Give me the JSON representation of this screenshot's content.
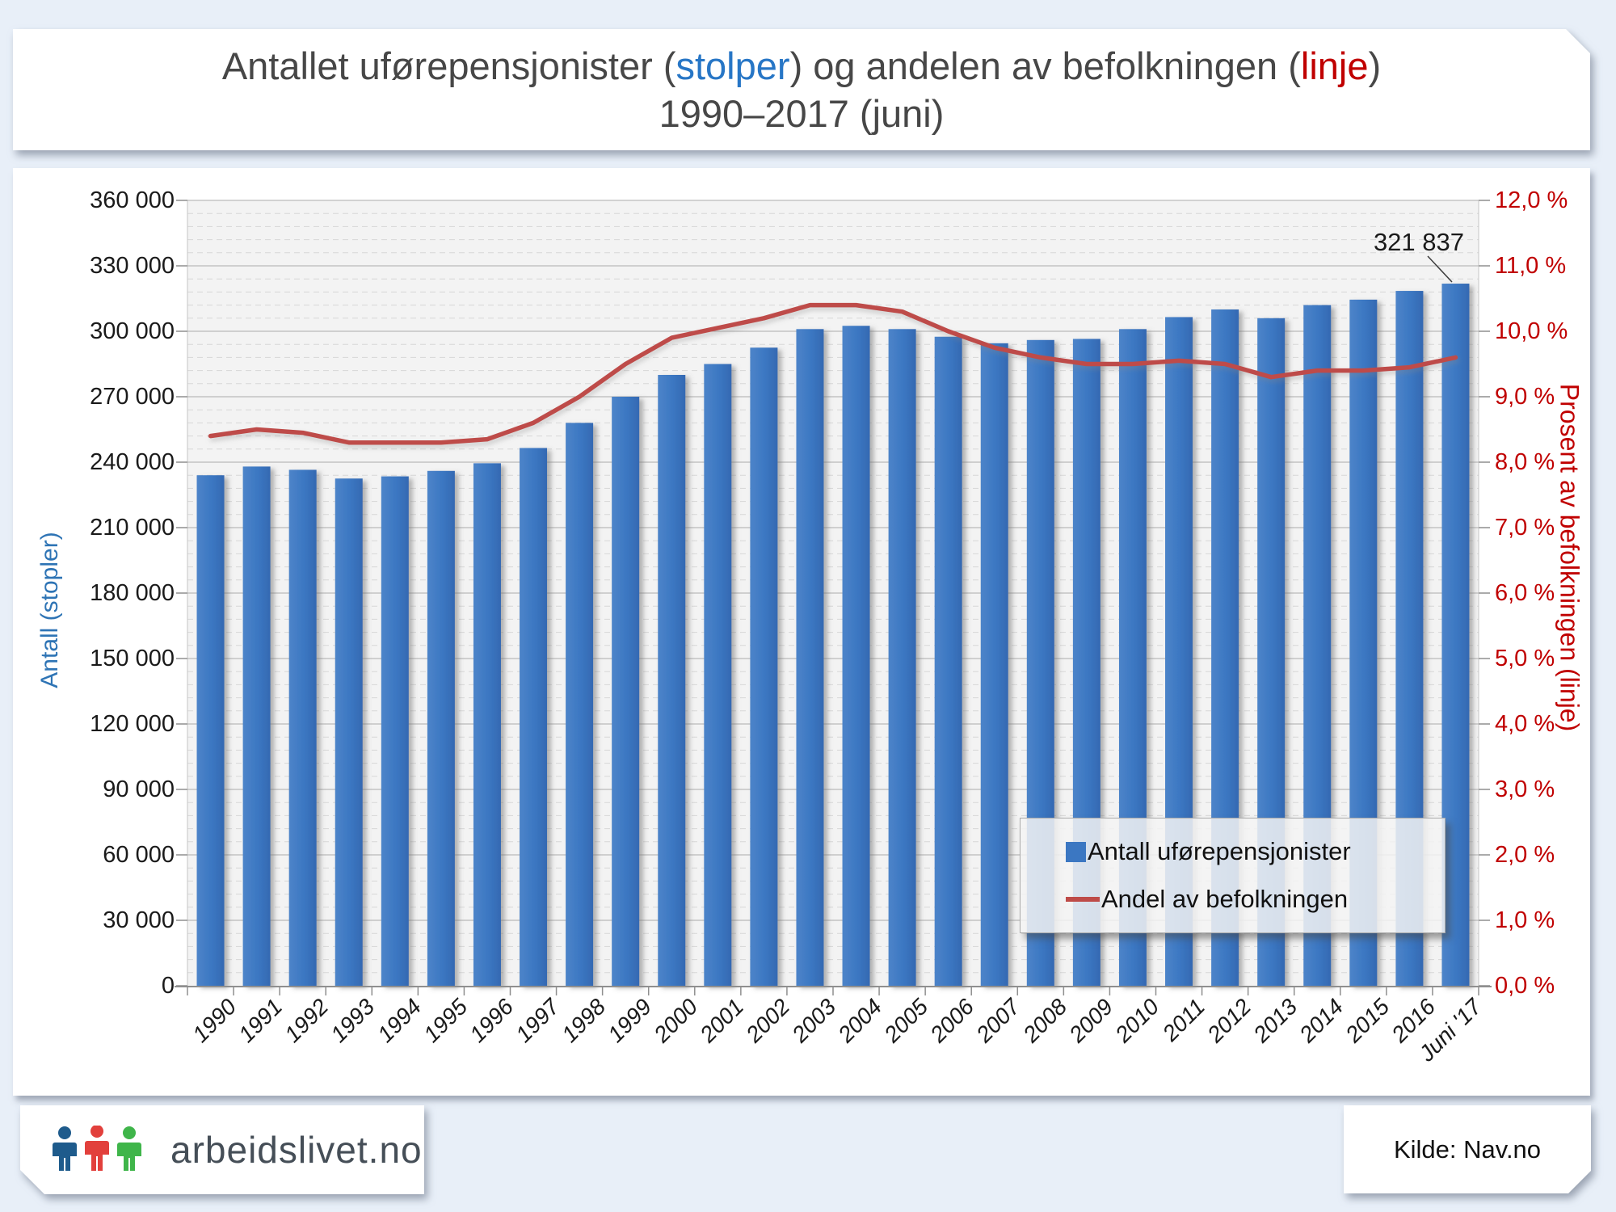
{
  "title": {
    "part1": "Antallet uførepensjonister (",
    "stolper": "stolper",
    "part2": ") og andelen av befolkningen (",
    "linje": "linje",
    "part3": ")",
    "line2": "1990–2017 (juni)",
    "accent_blue": "#2776C6",
    "accent_red": "#C00000"
  },
  "chart": {
    "left_axis_title": "Antall (stopler)",
    "right_axis_title": "Prosent av befolkningen (linje)",
    "left_ticks": [
      "360 000",
      "330 000",
      "300 000",
      "270 000",
      "240 000",
      "210 000",
      "180 000",
      "150 000",
      "120 000",
      "90 000",
      "60 000",
      "30 000",
      "0"
    ],
    "right_ticks": [
      "12,0 %",
      "11,0 %",
      "10,0 %",
      "9,0 %",
      "8,0 %",
      "7,0 %",
      "6,0 %",
      "5,0 %",
      "4,0 %",
      "3,0 %",
      "2,0 %",
      "1,0 %",
      "0,0 %"
    ],
    "annotation": "321 837",
    "legend": [
      {
        "label": "Antall uførepensjonister",
        "marker": "square",
        "color": "#3B77C2"
      },
      {
        "label": "Andel av befolkningen",
        "marker": "line",
        "color": "#BE4B48"
      }
    ]
  },
  "chart_data": {
    "type": "bar+line",
    "categories": [
      "1990",
      "1991",
      "1992",
      "1993",
      "1994",
      "1995",
      "1996",
      "1997",
      "1998",
      "1999",
      "2000",
      "2001",
      "2002",
      "2003",
      "2004",
      "2005",
      "2006",
      "2007",
      "2008",
      "2009",
      "2010",
      "2011",
      "2012",
      "2013",
      "2014",
      "2015",
      "2016",
      "Juni '17"
    ],
    "series": [
      {
        "name": "Antall uførepensjonister",
        "type": "bar",
        "axis": "left",
        "color": "#3B77C2",
        "values": [
          234000,
          238000,
          236500,
          232500,
          233500,
          236000,
          239500,
          246500,
          258000,
          270000,
          280000,
          285000,
          292500,
          301000,
          302500,
          301000,
          297500,
          294500,
          296000,
          296500,
          301000,
          306500,
          310000,
          306000,
          312000,
          314500,
          318500,
          321837
        ]
      },
      {
        "name": "Andel av befolkningen",
        "type": "line",
        "axis": "right",
        "color": "#BE4B48",
        "values": [
          8.4,
          8.5,
          8.45,
          8.3,
          8.3,
          8.3,
          8.35,
          8.6,
          9.0,
          9.5,
          9.9,
          10.05,
          10.2,
          10.4,
          10.4,
          10.3,
          10.0,
          9.75,
          9.6,
          9.5,
          9.5,
          9.55,
          9.5,
          9.3,
          9.4,
          9.4,
          9.45,
          9.6
        ]
      }
    ],
    "left_axis": {
      "title": "Antall (stopler)",
      "min": 0,
      "max": 360000,
      "step": 30000,
      "minor_step": 6000
    },
    "right_axis": {
      "title": "Prosent av befolkningen (linje)",
      "min": 0,
      "max": 12,
      "step": 1
    },
    "annotation": {
      "text": "321 837",
      "category": "Juni '17",
      "value": 321837
    },
    "grid": "horizontal-major-and-minor",
    "legend_position": "inside-lower-right",
    "title": "Antallet uførepensjonister (stolper) og andelen av befolkningen (linje) 1990–2017 (juni)"
  },
  "footer": {
    "logo_text": "arbeidslivet.no",
    "source_text": "Kilde: Nav.no",
    "logo_colors": [
      "#1E5B8C",
      "#E2403C",
      "#3FB54A"
    ]
  }
}
